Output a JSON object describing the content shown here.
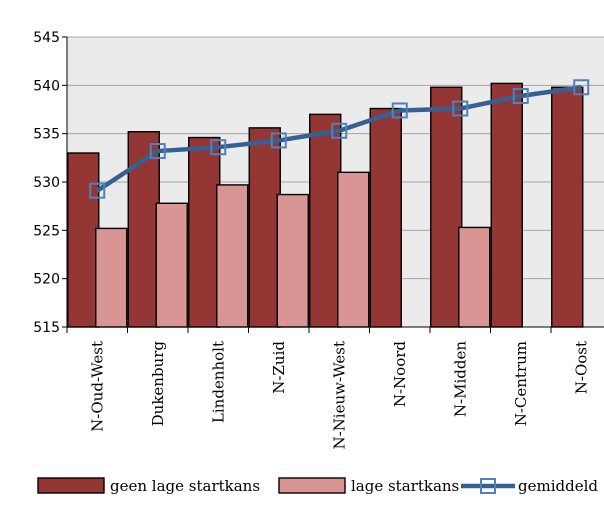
{
  "chart_data": {
    "type": "bar",
    "categories": [
      "N-Oud-West",
      "Dukenburg",
      "Lindenholt",
      "N-Zuid",
      "N-Nieuw-West",
      "N-Noord",
      "N-Midden",
      "N-Centrum",
      "N-Oost"
    ],
    "series": [
      {
        "name": "geen lage startkans",
        "kind": "bar",
        "values": [
          533.0,
          535.2,
          534.6,
          535.6,
          537.0,
          537.6,
          539.8,
          540.2,
          539.8
        ]
      },
      {
        "name": "lage startkans",
        "kind": "bar",
        "values": [
          525.2,
          527.8,
          529.7,
          528.7,
          531.0,
          null,
          525.3,
          null,
          null
        ]
      },
      {
        "name": "gemiddeld",
        "kind": "line",
        "values": [
          529.1,
          533.2,
          533.6,
          534.3,
          535.3,
          537.4,
          537.6,
          538.9,
          539.8
        ]
      }
    ],
    "ylim": [
      515,
      545
    ],
    "yticks": [
      515,
      520,
      525,
      530,
      535,
      540,
      545
    ],
    "ytick_labels": [
      "515",
      "520",
      "525",
      "530",
      "535",
      "540",
      "545"
    ],
    "grid": true,
    "legend_position": "bottom",
    "colors": {
      "geen lage startkans": "#943634",
      "lage startkans": "#d99594",
      "gemiddeld": "#376092",
      "plot_background": "#ebebeb",
      "gridline": "#a6a6a6"
    }
  }
}
